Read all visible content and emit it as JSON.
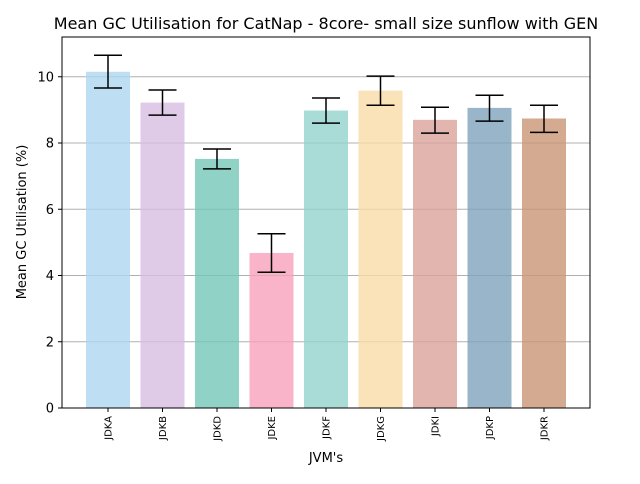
{
  "chart_data": {
    "type": "bar",
    "title": "Mean GC Utilisation for CatNap - 8core- small size sunflow with GEN",
    "xlabel": "JVM's",
    "ylabel": "Mean GC Utilisation (%)",
    "categories": [
      "JDKA",
      "JDKB",
      "JDKD",
      "JDKE",
      "JDKF",
      "JDKG",
      "JDKI",
      "JDKP",
      "JDKR"
    ],
    "values": [
      10.15,
      9.22,
      7.52,
      4.68,
      8.98,
      9.58,
      8.7,
      9.06,
      8.74
    ],
    "error_low": [
      9.66,
      8.84,
      7.22,
      4.1,
      8.6,
      9.14,
      8.3,
      8.66,
      8.32
    ],
    "error_high": [
      10.65,
      9.6,
      7.82,
      5.26,
      9.36,
      10.02,
      9.08,
      9.44,
      9.14
    ],
    "colors": [
      "#aed6f1",
      "#d7bde2",
      "#76c7b8",
      "#f7a1bd",
      "#94d3cc",
      "#f9dba8",
      "#dba29b",
      "#7fa3bb",
      "#c99574"
    ],
    "ylim": [
      0,
      11.2
    ],
    "yticks": [
      0,
      2,
      4,
      6,
      8,
      10
    ],
    "grid": "horizontal",
    "bar_opacity": 0.8
  }
}
